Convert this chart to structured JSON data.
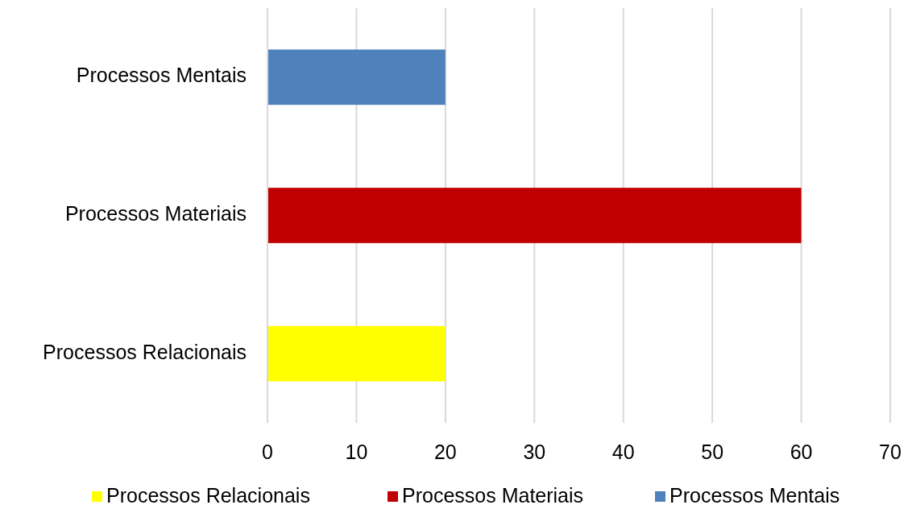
{
  "chart_data": {
    "type": "bar",
    "orientation": "horizontal",
    "categories": [
      "Processos Mentais",
      "Processos Materiais",
      "Processos Relacionais"
    ],
    "series": [
      {
        "name": "Processos Relacionais",
        "color": "#ffff00",
        "values": [
          null,
          null,
          20
        ]
      },
      {
        "name": "Processos Materiais",
        "color": "#c00000",
        "values": [
          null,
          60,
          null
        ]
      },
      {
        "name": "Processos Mentais",
        "color": "#4f81bd",
        "values": [
          20,
          null,
          null
        ]
      }
    ],
    "xlim": [
      0,
      70
    ],
    "xticks": [
      0,
      10,
      20,
      30,
      40,
      50,
      60,
      70
    ],
    "grid": "x",
    "legend": "bottom"
  }
}
